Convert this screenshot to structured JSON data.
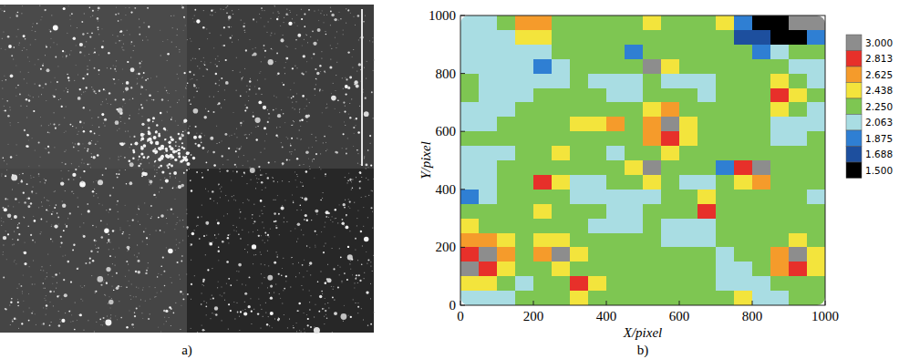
{
  "image_panel": {
    "caption": "a)"
  },
  "chart_data": {
    "type": "contour",
    "caption": "b)",
    "x_label": "X/pixel",
    "y_label": "Y/pixel",
    "xlim": [
      0,
      1000
    ],
    "ylim": [
      0,
      1000
    ],
    "xticks": [
      0,
      200,
      400,
      600,
      800,
      1000
    ],
    "yticks": [
      0,
      200,
      400,
      600,
      800,
      1000
    ],
    "x": [
      25,
      75,
      125,
      175,
      225,
      275,
      325,
      375,
      425,
      475,
      525,
      575,
      625,
      675,
      725,
      775,
      825,
      875,
      925,
      975
    ],
    "y": [
      975,
      925,
      875,
      825,
      775,
      725,
      675,
      625,
      575,
      525,
      475,
      425,
      375,
      325,
      275,
      225,
      175,
      125,
      75,
      25
    ],
    "z": [
      [
        2.15,
        2.15,
        2.3,
        2.8,
        2.7,
        2.3,
        2.3,
        2.3,
        2.3,
        2.3,
        2.5,
        2.3,
        2.3,
        2.3,
        2.45,
        2.0,
        1.6,
        1.55,
        3.1,
        3.1
      ],
      [
        2.15,
        2.15,
        2.15,
        2.5,
        2.45,
        2.3,
        2.3,
        2.3,
        2.3,
        2.3,
        2.3,
        2.3,
        2.3,
        2.3,
        2.3,
        1.8,
        1.75,
        1.6,
        1.65,
        2.0
      ],
      [
        2.15,
        2.15,
        2.15,
        2.15,
        2.2,
        2.3,
        2.3,
        2.3,
        2.3,
        1.95,
        2.3,
        2.4,
        2.3,
        2.3,
        2.3,
        2.3,
        2.0,
        2.1,
        2.3,
        2.3
      ],
      [
        2.15,
        2.15,
        2.15,
        2.15,
        1.95,
        2.15,
        2.3,
        2.3,
        2.3,
        2.3,
        3.05,
        2.5,
        2.3,
        2.3,
        2.3,
        2.3,
        2.3,
        2.3,
        2.15,
        2.15
      ],
      [
        2.3,
        2.15,
        2.15,
        2.15,
        2.15,
        2.15,
        2.3,
        2.15,
        2.15,
        2.15,
        2.3,
        2.15,
        2.15,
        2.15,
        2.3,
        2.3,
        2.3,
        2.45,
        2.3,
        2.15
      ],
      [
        2.3,
        2.15,
        2.15,
        2.15,
        2.3,
        2.3,
        2.3,
        2.3,
        2.15,
        2.15,
        2.3,
        2.3,
        2.3,
        2.15,
        2.3,
        2.3,
        2.3,
        2.85,
        2.6,
        2.3
      ],
      [
        2.15,
        2.15,
        2.15,
        2.3,
        2.3,
        2.3,
        2.3,
        2.3,
        2.3,
        2.3,
        2.5,
        2.7,
        2.3,
        2.3,
        2.3,
        2.3,
        2.3,
        2.5,
        2.3,
        2.15
      ],
      [
        2.15,
        2.15,
        2.3,
        2.3,
        2.3,
        2.3,
        2.5,
        2.45,
        2.75,
        2.4,
        2.8,
        3.1,
        2.5,
        2.3,
        2.3,
        2.3,
        2.3,
        2.15,
        2.15,
        2.15
      ],
      [
        2.3,
        2.3,
        2.3,
        2.3,
        2.3,
        2.3,
        2.3,
        2.3,
        2.3,
        2.3,
        2.7,
        2.9,
        2.45,
        2.3,
        2.3,
        2.3,
        2.3,
        2.15,
        2.15,
        2.3
      ],
      [
        2.15,
        2.15,
        2.15,
        2.3,
        2.3,
        2.55,
        2.3,
        2.3,
        2.15,
        2.3,
        2.3,
        2.45,
        2.3,
        2.3,
        2.3,
        2.3,
        2.3,
        2.3,
        2.3,
        2.3
      ],
      [
        2.15,
        2.15,
        2.3,
        2.3,
        2.3,
        2.3,
        2.3,
        2.3,
        2.3,
        2.5,
        3.1,
        2.4,
        2.3,
        2.3,
        1.95,
        2.9,
        3.1,
        2.3,
        2.3,
        2.3
      ],
      [
        2.15,
        2.15,
        2.3,
        2.3,
        2.95,
        2.5,
        2.15,
        2.15,
        2.3,
        2.4,
        2.6,
        2.3,
        2.15,
        2.15,
        2.3,
        2.6,
        2.7,
        2.3,
        2.3,
        2.3
      ],
      [
        1.95,
        2.15,
        2.3,
        2.3,
        2.4,
        2.3,
        2.15,
        2.15,
        2.15,
        2.15,
        2.15,
        2.3,
        2.3,
        2.5,
        2.3,
        2.3,
        2.3,
        2.3,
        2.3,
        2.15
      ],
      [
        2.3,
        2.3,
        2.3,
        2.3,
        2.55,
        2.3,
        2.3,
        2.3,
        2.15,
        2.15,
        2.3,
        2.3,
        2.3,
        2.85,
        2.3,
        2.3,
        2.3,
        2.3,
        2.3,
        2.3
      ],
      [
        2.45,
        2.3,
        2.3,
        2.3,
        2.3,
        2.3,
        2.3,
        2.15,
        2.15,
        2.15,
        2.3,
        2.15,
        2.15,
        2.15,
        2.3,
        2.3,
        2.3,
        2.3,
        2.3,
        2.3
      ],
      [
        2.7,
        2.8,
        2.5,
        2.3,
        2.45,
        2.6,
        2.3,
        2.3,
        2.3,
        2.3,
        2.3,
        2.15,
        2.15,
        2.15,
        2.3,
        2.3,
        2.3,
        2.3,
        2.45,
        2.3
      ],
      [
        2.9,
        3.1,
        2.7,
        2.3,
        2.7,
        3.05,
        2.45,
        2.3,
        2.3,
        2.3,
        2.3,
        2.3,
        2.3,
        2.3,
        2.15,
        2.3,
        2.3,
        2.65,
        3.05,
        2.6
      ],
      [
        3.0,
        2.9,
        2.6,
        2.3,
        2.4,
        2.5,
        2.3,
        2.3,
        2.3,
        2.3,
        2.3,
        2.3,
        2.3,
        2.3,
        2.15,
        2.15,
        2.3,
        2.7,
        2.85,
        2.45
      ],
      [
        2.6,
        2.5,
        2.3,
        2.15,
        2.3,
        2.3,
        2.85,
        2.5,
        2.3,
        2.3,
        2.3,
        2.3,
        2.3,
        2.3,
        2.15,
        2.15,
        2.15,
        2.3,
        2.3,
        2.3
      ],
      [
        2.15,
        2.15,
        2.15,
        2.3,
        2.3,
        2.3,
        2.5,
        2.3,
        2.3,
        2.3,
        2.3,
        2.3,
        2.3,
        2.3,
        2.3,
        2.5,
        2.15,
        2.15,
        2.3,
        2.3
      ]
    ],
    "colorbar_ticks": [
      {
        "value": 1.5,
        "label": "1.500"
      },
      {
        "value": 1.688,
        "label": "1.688"
      },
      {
        "value": 1.875,
        "label": "1.875"
      },
      {
        "value": 2.063,
        "label": "2.063"
      },
      {
        "value": 2.25,
        "label": "2.250"
      },
      {
        "value": 2.438,
        "label": "2.438"
      },
      {
        "value": 2.625,
        "label": "2.625"
      },
      {
        "value": 2.813,
        "label": "2.813"
      },
      {
        "value": 3.0,
        "label": "3.000"
      }
    ],
    "colors": [
      "#000000",
      "#1d4f9e",
      "#2f7fd3",
      "#a9dde3",
      "#7ec652",
      "#f3e43c",
      "#f59b2b",
      "#e7302a",
      "#8d8d8d"
    ]
  }
}
